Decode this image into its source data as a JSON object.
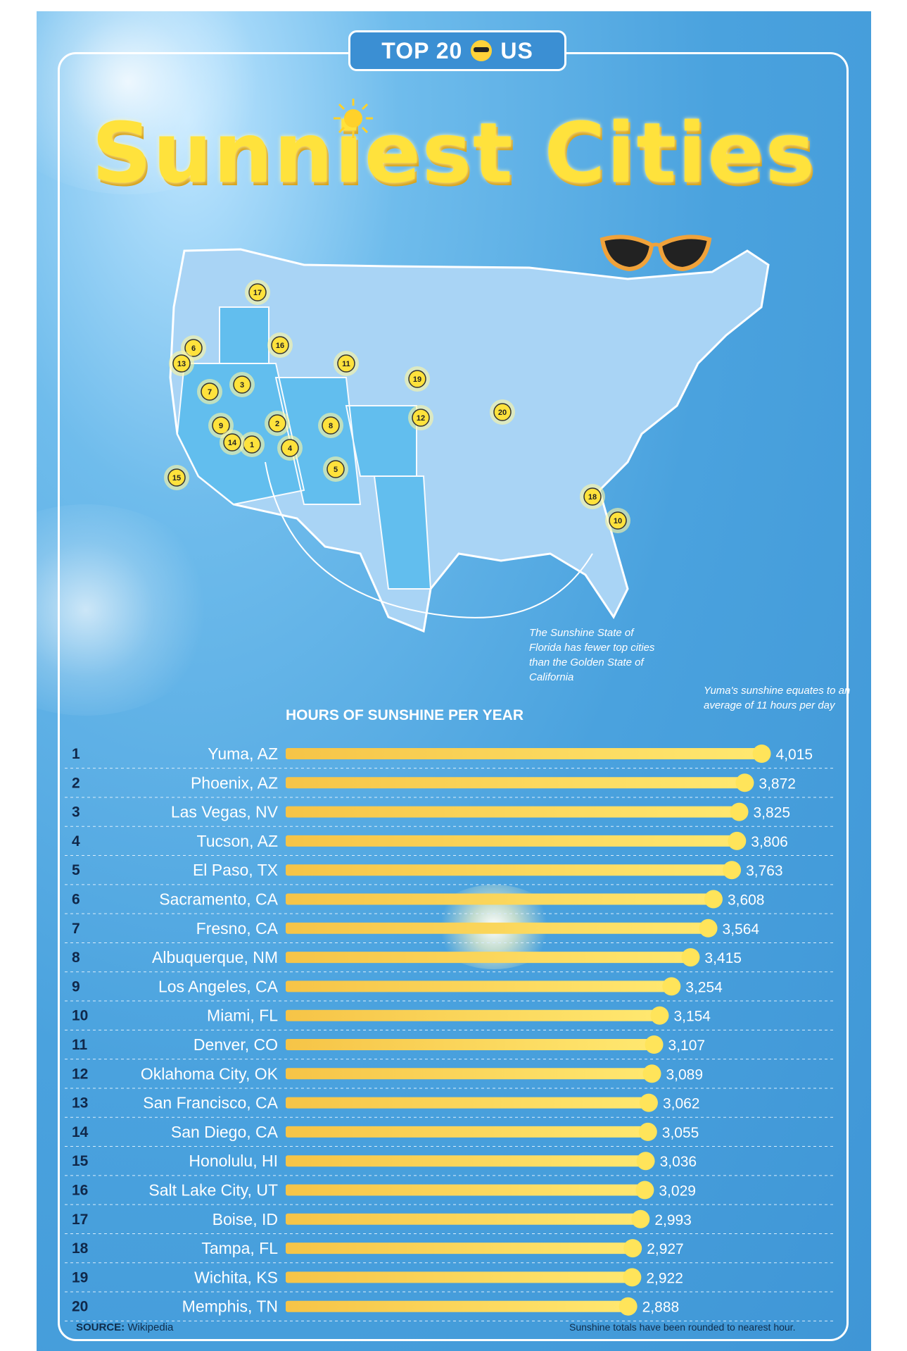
{
  "badge": {
    "left_text": "TOP 20",
    "right_text": "US",
    "icon": "sun-with-sunglasses-icon"
  },
  "title": "Sunniest Cities",
  "map": {
    "note": "The Sunshine State of Florida has fewer top cities than the Golden State of California",
    "markers": [
      "1",
      "2",
      "3",
      "4",
      "5",
      "6",
      "7",
      "8",
      "9",
      "10",
      "11",
      "12",
      "13",
      "14",
      "15",
      "16",
      "17",
      "18",
      "19",
      "20"
    ]
  },
  "yuma_note": "Yuma's sunshine equates to an average of 11 hours per day",
  "chart_heading": "HOURS OF SUNSHINE PER YEAR",
  "colors": {
    "background": "#4aa2de",
    "bar_start": "#f6c447",
    "bar_end": "#ffe870",
    "dot": "#ffe45a",
    "rank_text": "#10284a",
    "label_text": "#ffffff"
  },
  "chart_data": {
    "type": "bar",
    "orientation": "horizontal",
    "ranks": [
      "1",
      "2",
      "3",
      "4",
      "5",
      "6",
      "7",
      "8",
      "9",
      "10",
      "11",
      "12",
      "13",
      "14",
      "15",
      "16",
      "17",
      "18",
      "19",
      "20"
    ],
    "categories": [
      "Yuma, AZ",
      "Phoenix, AZ",
      "Las Vegas, NV",
      "Tucson, AZ",
      "El Paso, TX",
      "Sacramento, CA",
      "Fresno, CA",
      "Albuquerque, NM",
      "Los Angeles, CA",
      "Miami, FL",
      "Denver, CO",
      "Oklahoma City, OK",
      "San Francisco, CA",
      "San Diego, CA",
      "Honolulu, HI",
      "Salt Lake City, UT",
      "Boise, ID",
      "Tampa, FL",
      "Wichita, KS",
      "Memphis, TN"
    ],
    "values": [
      4015,
      3872,
      3825,
      3806,
      3763,
      3608,
      3564,
      3415,
      3254,
      3154,
      3107,
      3089,
      3062,
      3055,
      3036,
      3029,
      2993,
      2927,
      2922,
      2888
    ],
    "value_labels": [
      "4,015",
      "3,872",
      "3,825",
      "3,806",
      "3,763",
      "3,608",
      "3,564",
      "3,415",
      "3,254",
      "3,154",
      "3,107",
      "3,089",
      "3,062",
      "3,055",
      "3,036",
      "3,029",
      "2,993",
      "2,927",
      "2,922",
      "2,888"
    ],
    "title": "HOURS OF SUNSHINE PER YEAR",
    "grid": "dashed row separators"
  },
  "footer": {
    "source_label": "SOURCE:",
    "source_value": "Wikipedia",
    "note": "Sunshine totals have been rounded to nearest hour."
  }
}
